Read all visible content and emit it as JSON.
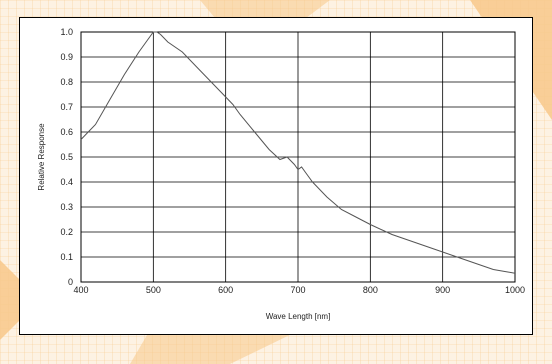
{
  "chart_data": {
    "type": "line",
    "title": "",
    "xlabel": "Wave Length [nm]",
    "ylabel": "Relative Response",
    "xlim": [
      400,
      1000
    ],
    "ylim": [
      0,
      1.0
    ],
    "x_ticks": [
      "400",
      "500",
      "600",
      "700",
      "800",
      "900",
      "1000"
    ],
    "y_ticks": [
      "0",
      "0.1",
      "0.2",
      "0.3",
      "0.4",
      "0.5",
      "0.6",
      "0.7",
      "0.8",
      "0.9",
      "1.0"
    ],
    "grid": true,
    "line_color": "#555555",
    "series": [
      {
        "x": [
          400,
          410,
          420,
          440,
          460,
          480,
          495,
          500,
          505,
          510,
          520,
          540,
          560,
          580,
          600,
          610,
          620,
          640,
          660,
          675,
          685,
          695,
          700,
          705,
          710,
          720,
          740,
          760,
          780,
          800,
          830,
          860,
          890,
          920,
          950,
          970,
          990,
          1000
        ],
        "y": [
          0.57,
          0.6,
          0.63,
          0.73,
          0.83,
          0.92,
          0.98,
          1.0,
          1.0,
          0.99,
          0.96,
          0.92,
          0.86,
          0.8,
          0.74,
          0.71,
          0.67,
          0.6,
          0.53,
          0.49,
          0.5,
          0.47,
          0.45,
          0.46,
          0.44,
          0.4,
          0.34,
          0.29,
          0.26,
          0.23,
          0.19,
          0.16,
          0.13,
          0.1,
          0.07,
          0.05,
          0.04,
          0.035
        ]
      }
    ]
  }
}
